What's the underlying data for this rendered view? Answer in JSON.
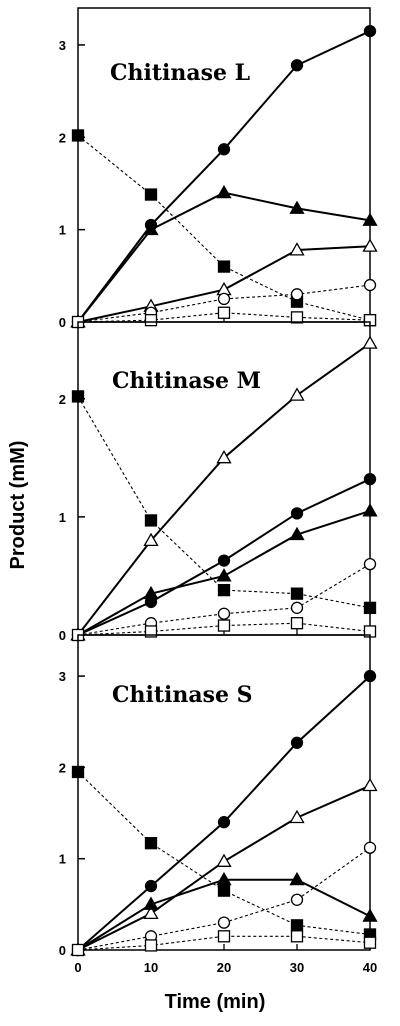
{
  "chart_data": [
    {
      "type": "line",
      "title": "Chitinase L",
      "ylim": [
        0,
        3.4
      ],
      "yticks": [
        0,
        1,
        2,
        3
      ],
      "x": [
        0,
        10,
        20,
        30,
        40
      ],
      "series": [
        {
          "marker": "filled-circle",
          "style": "solid",
          "values": [
            0,
            1.05,
            1.87,
            2.78,
            3.15
          ]
        },
        {
          "marker": "filled-triangle",
          "style": "solid",
          "values": [
            0,
            1.0,
            1.4,
            1.23,
            1.1
          ]
        },
        {
          "marker": "open-triangle",
          "style": "solid",
          "values": [
            0,
            0.17,
            0.35,
            0.78,
            0.82
          ]
        },
        {
          "marker": "filled-square",
          "style": "dashed",
          "values": [
            2.02,
            1.38,
            0.6,
            0.22,
            0.02
          ]
        },
        {
          "marker": "open-circle",
          "style": "dashed",
          "values": [
            0,
            0.1,
            0.25,
            0.3,
            0.4
          ]
        },
        {
          "marker": "open-square",
          "style": "dashed",
          "values": [
            0,
            0.02,
            0.1,
            0.05,
            0.02
          ]
        }
      ]
    },
    {
      "type": "line",
      "title": "Chitinase M",
      "ylim": [
        0,
        2.65
      ],
      "yticks": [
        0,
        1,
        2
      ],
      "x": [
        0,
        10,
        20,
        30,
        40
      ],
      "series": [
        {
          "marker": "open-triangle",
          "style": "solid",
          "values": [
            0,
            0.8,
            1.5,
            2.03,
            2.47
          ]
        },
        {
          "marker": "filled-circle",
          "style": "solid",
          "values": [
            0,
            0.28,
            0.63,
            1.03,
            1.32
          ]
        },
        {
          "marker": "filled-triangle",
          "style": "solid",
          "values": [
            0,
            0.35,
            0.5,
            0.85,
            1.05
          ]
        },
        {
          "marker": "filled-square",
          "style": "dashed",
          "values": [
            2.02,
            0.97,
            0.38,
            0.35,
            0.23
          ]
        },
        {
          "marker": "open-circle",
          "style": "dashed",
          "values": [
            0,
            0.1,
            0.18,
            0.23,
            0.6
          ]
        },
        {
          "marker": "open-square",
          "style": "dashed",
          "values": [
            0,
            0.03,
            0.08,
            0.1,
            0.03
          ]
        }
      ]
    },
    {
      "type": "line",
      "title": "Chitinase S",
      "ylim": [
        0,
        3.45
      ],
      "yticks": [
        0,
        1,
        2,
        3
      ],
      "x": [
        0,
        10,
        20,
        30,
        40
      ],
      "series": [
        {
          "marker": "filled-circle",
          "style": "solid",
          "values": [
            0,
            0.7,
            1.4,
            2.27,
            3.0
          ]
        },
        {
          "marker": "open-triangle",
          "style": "solid",
          "values": [
            0,
            0.4,
            0.97,
            1.45,
            1.8
          ]
        },
        {
          "marker": "filled-triangle",
          "style": "solid",
          "values": [
            0,
            0.5,
            0.77,
            0.77,
            0.37
          ]
        },
        {
          "marker": "filled-square",
          "style": "dashed",
          "values": [
            1.95,
            1.17,
            0.65,
            0.27,
            0.17
          ]
        },
        {
          "marker": "open-circle",
          "style": "dashed",
          "values": [
            0,
            0.15,
            0.3,
            0.55,
            1.12
          ]
        },
        {
          "marker": "open-square",
          "style": "dashed",
          "values": [
            0,
            0.05,
            0.15,
            0.15,
            0.08
          ]
        }
      ]
    }
  ],
  "axes": {
    "xlabel": "Time (min)",
    "ylabel": "Product (mM)",
    "xlim": [
      0,
      40
    ],
    "xticks": [
      0,
      10,
      20,
      30,
      40
    ]
  }
}
